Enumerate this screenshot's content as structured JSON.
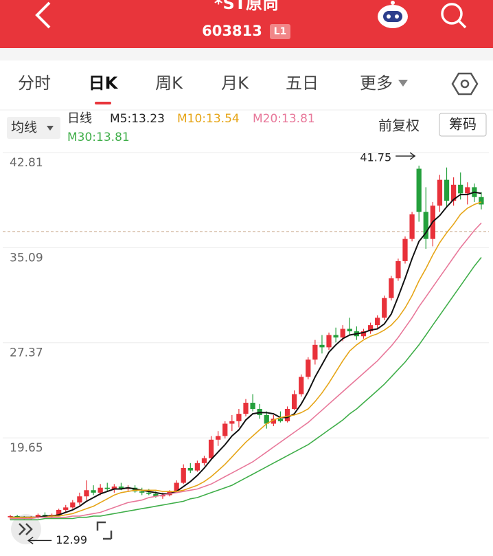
{
  "header": {
    "title": "*ST原尚",
    "code": "603813",
    "badge": "L1"
  },
  "tabs": [
    "分时",
    "日K",
    "周K",
    "月K",
    "五日",
    "更多"
  ],
  "selected_tab": 1,
  "toolbar": {
    "ma_button": "均线",
    "line_type": "日线",
    "adjust": "前复权",
    "chips": "筹码"
  },
  "chart_data": {
    "type": "candlestick",
    "ylim": [
      10.56,
      43.37
    ],
    "yticks": [
      42.81,
      35.09,
      27.37,
      19.65
    ],
    "grid": true,
    "up_color": "#e8313a",
    "down_color": "#24a03c",
    "price_line": 36.4,
    "candles": [
      [
        13.2,
        13.4,
        13.0,
        13.3
      ],
      [
        13.3,
        13.4,
        13.1,
        13.2
      ],
      [
        13.2,
        13.3,
        12.99,
        13.1
      ],
      [
        13.1,
        13.3,
        13.0,
        13.2
      ],
      [
        13.2,
        13.5,
        13.1,
        13.4
      ],
      [
        13.4,
        13.6,
        13.2,
        13.3
      ],
      [
        13.3,
        13.5,
        13.1,
        13.4
      ],
      [
        13.4,
        13.9,
        13.3,
        13.8
      ],
      [
        13.8,
        14.2,
        13.6,
        14.0
      ],
      [
        14.0,
        14.6,
        13.9,
        14.4
      ],
      [
        14.4,
        15.2,
        14.2,
        14.9
      ],
      [
        14.9,
        16.2,
        14.6,
        15.4
      ],
      [
        15.4,
        15.8,
        15.0,
        15.2
      ],
      [
        15.2,
        15.9,
        15.0,
        15.6
      ],
      [
        15.6,
        16.0,
        15.3,
        15.5
      ],
      [
        15.5,
        15.9,
        15.2,
        15.7
      ],
      [
        15.7,
        16.0,
        15.4,
        15.5
      ],
      [
        15.5,
        15.8,
        15.3,
        15.6
      ],
      [
        15.6,
        15.8,
        15.2,
        15.3
      ],
      [
        15.3,
        15.6,
        15.0,
        15.2
      ],
      [
        15.2,
        15.5,
        15.0,
        15.1
      ],
      [
        15.1,
        15.3,
        14.8,
        14.9
      ],
      [
        14.9,
        15.2,
        14.7,
        15.0
      ],
      [
        15.0,
        15.4,
        14.9,
        15.3
      ],
      [
        15.3,
        16.2,
        15.2,
        16.0
      ],
      [
        16.0,
        17.5,
        15.9,
        17.2
      ],
      [
        17.2,
        17.6,
        16.8,
        17.0
      ],
      [
        17.0,
        17.8,
        16.9,
        17.6
      ],
      [
        17.6,
        18.2,
        17.4,
        18.0
      ],
      [
        18.0,
        19.8,
        17.9,
        19.5
      ],
      [
        19.5,
        20.2,
        19.0,
        19.8
      ],
      [
        19.8,
        21.0,
        19.6,
        20.8
      ],
      [
        20.8,
        21.5,
        20.2,
        21.0
      ],
      [
        21.0,
        22.0,
        20.5,
        21.6
      ],
      [
        21.6,
        22.8,
        21.4,
        22.5
      ],
      [
        22.5,
        23.2,
        21.8,
        22.0
      ],
      [
        22.0,
        22.4,
        21.2,
        21.5
      ],
      [
        21.5,
        21.8,
        20.4,
        20.8
      ],
      [
        20.8,
        21.5,
        20.6,
        21.2
      ],
      [
        21.2,
        21.8,
        20.9,
        21.0
      ],
      [
        21.0,
        22.2,
        20.9,
        22.0
      ],
      [
        22.0,
        23.5,
        21.9,
        23.2
      ],
      [
        23.2,
        24.8,
        23.0,
        24.6
      ],
      [
        24.6,
        26.2,
        24.4,
        26.0
      ],
      [
        26.0,
        27.6,
        25.6,
        27.2
      ],
      [
        27.2,
        28.0,
        26.5,
        27.0
      ],
      [
        27.0,
        28.2,
        26.8,
        28.0
      ],
      [
        28.0,
        28.6,
        27.4,
        27.8
      ],
      [
        27.8,
        28.8,
        27.5,
        28.5
      ],
      [
        28.5,
        29.4,
        28.0,
        28.3
      ],
      [
        28.3,
        28.7,
        27.6,
        27.9
      ],
      [
        27.9,
        28.5,
        27.7,
        28.3
      ],
      [
        28.3,
        29.0,
        28.1,
        28.8
      ],
      [
        28.8,
        29.6,
        28.5,
        29.4
      ],
      [
        29.4,
        31.2,
        29.2,
        31.0
      ],
      [
        31.0,
        32.8,
        30.8,
        32.6
      ],
      [
        32.6,
        34.2,
        32.4,
        34.0
      ],
      [
        34.0,
        36.0,
        33.8,
        35.8
      ],
      [
        35.8,
        38.0,
        35.6,
        37.8
      ],
      [
        41.5,
        41.75,
        37.2,
        38.0
      ],
      [
        38.0,
        40.0,
        35.0,
        35.8
      ],
      [
        35.8,
        38.8,
        35.2,
        38.5
      ],
      [
        38.5,
        41.0,
        38.0,
        40.6
      ],
      [
        40.6,
        41.6,
        38.4,
        38.9
      ],
      [
        38.9,
        40.8,
        38.5,
        40.2
      ],
      [
        40.2,
        41.2,
        39.0,
        39.5
      ],
      [
        39.5,
        40.4,
        38.6,
        40.0
      ],
      [
        40.0,
        40.3,
        38.8,
        39.2
      ],
      [
        39.2,
        39.6,
        38.2,
        38.6
      ]
    ],
    "series": [
      {
        "name": "M5",
        "legend": "M5:13.23",
        "color": "#111111",
        "values": [
          13.2,
          13.2,
          13.2,
          13.2,
          13.2,
          13.3,
          13.3,
          13.4,
          13.6,
          13.8,
          14.1,
          14.5,
          14.8,
          15.1,
          15.3,
          15.5,
          15.5,
          15.6,
          15.5,
          15.4,
          15.3,
          15.2,
          15.1,
          15.1,
          15.3,
          15.7,
          16.1,
          16.6,
          17.2,
          17.9,
          18.5,
          19.1,
          19.8,
          20.3,
          21.1,
          21.6,
          21.7,
          21.7,
          21.6,
          21.3,
          21.3,
          21.6,
          22.4,
          23.4,
          24.6,
          25.6,
          26.6,
          27.2,
          27.7,
          28.0,
          28.1,
          28.2,
          28.4,
          28.5,
          28.9,
          29.7,
          31.1,
          32.6,
          34.2,
          35.6,
          36.3,
          37.2,
          37.7,
          38.4,
          39.0,
          39.4,
          39.4,
          39.6,
          39.5
        ]
      },
      {
        "name": "M10",
        "legend": "M10:13.54",
        "color": "#e6a517",
        "values": [
          13.2,
          13.2,
          13.2,
          13.2,
          13.2,
          13.2,
          13.3,
          13.3,
          13.4,
          13.5,
          13.7,
          13.9,
          14.1,
          14.4,
          14.7,
          15.0,
          15.2,
          15.3,
          15.4,
          15.4,
          15.4,
          15.4,
          15.3,
          15.3,
          15.3,
          15.4,
          15.6,
          15.8,
          16.1,
          16.5,
          17.0,
          17.5,
          18.1,
          18.7,
          19.3,
          19.8,
          20.3,
          20.8,
          21.1,
          21.3,
          21.4,
          21.5,
          21.7,
          22.0,
          22.6,
          23.3,
          24.1,
          25.0,
          25.9,
          26.7,
          27.2,
          27.6,
          27.9,
          28.1,
          28.4,
          28.8,
          29.4,
          30.2,
          31.2,
          32.4,
          33.4,
          34.5,
          35.5,
          36.3,
          37.0,
          37.8,
          38.3,
          38.6,
          38.8
        ]
      },
      {
        "name": "M20",
        "legend": "M20:13.81",
        "color": "#e8789a",
        "values": [
          13.1,
          13.1,
          13.1,
          13.1,
          13.2,
          13.2,
          13.2,
          13.2,
          13.2,
          13.3,
          13.3,
          13.4,
          13.5,
          13.6,
          13.8,
          14.0,
          14.2,
          14.4,
          14.5,
          14.6,
          14.8,
          14.9,
          15.0,
          15.1,
          15.2,
          15.3,
          15.4,
          15.5,
          15.7,
          15.9,
          16.2,
          16.5,
          16.8,
          17.1,
          17.4,
          17.7,
          18.1,
          18.5,
          18.9,
          19.3,
          19.7,
          20.1,
          20.5,
          20.9,
          21.4,
          21.9,
          22.4,
          22.9,
          23.4,
          23.9,
          24.4,
          24.9,
          25.4,
          25.9,
          26.5,
          27.1,
          27.8,
          28.6,
          29.4,
          30.3,
          31.1,
          31.9,
          32.7,
          33.5,
          34.3,
          35.1,
          35.8,
          36.5,
          37.1
        ]
      },
      {
        "name": "M30",
        "legend": "M30:13.81",
        "color": "#3fae49",
        "values": [
          13.0,
          13.0,
          13.0,
          13.0,
          13.0,
          13.1,
          13.1,
          13.1,
          13.1,
          13.1,
          13.2,
          13.2,
          13.3,
          13.3,
          13.4,
          13.5,
          13.6,
          13.7,
          13.8,
          13.9,
          14.0,
          14.1,
          14.2,
          14.3,
          14.4,
          14.5,
          14.7,
          14.8,
          15.0,
          15.2,
          15.4,
          15.6,
          15.8,
          16.1,
          16.4,
          16.7,
          17.0,
          17.3,
          17.6,
          17.9,
          18.2,
          18.5,
          18.8,
          19.1,
          19.5,
          19.9,
          20.3,
          20.7,
          21.1,
          21.6,
          22.0,
          22.5,
          23.0,
          23.5,
          24.0,
          24.6,
          25.2,
          25.8,
          26.5,
          27.2,
          28.0,
          28.8,
          29.6,
          30.4,
          31.2,
          32.0,
          32.8,
          33.6,
          34.3
        ]
      }
    ],
    "annotations": [
      {
        "value": 41.75,
        "side": "high"
      },
      {
        "value": 12.99,
        "side": "low"
      }
    ]
  }
}
